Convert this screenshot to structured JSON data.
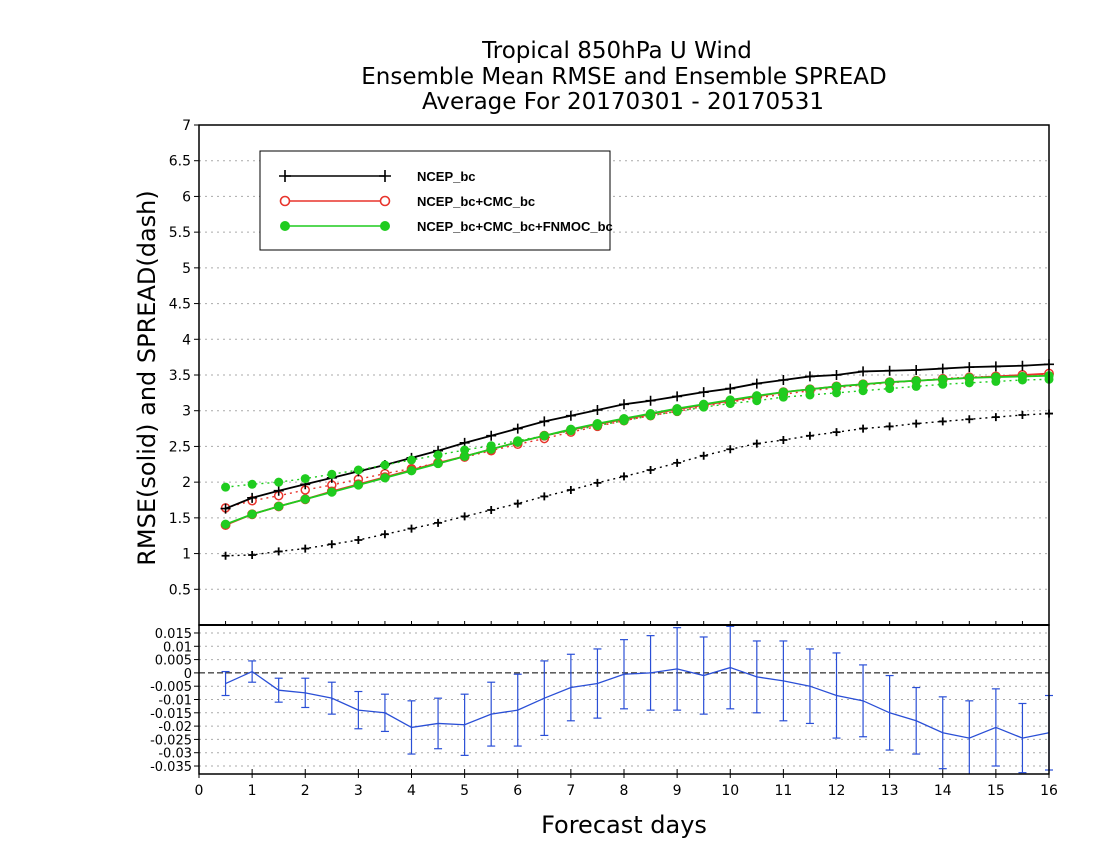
{
  "chart_data": [
    {
      "type": "line",
      "title": [
        "Tropical 850hPa U Wind",
        "Ensemble Mean RMSE and Ensemble SPREAD",
        "Average For 20170301 - 20170531"
      ],
      "ylabel": "RMSE(solid)  and  SPREAD(dash)",
      "xlim": [
        0,
        16
      ],
      "ylim": [
        0,
        7
      ],
      "yticks": [
        "0.5",
        "1",
        "1.5",
        "2",
        "2.5",
        "3",
        "3.5",
        "4",
        "4.5",
        "5",
        "5.5",
        "6",
        "6.5",
        "7"
      ],
      "grid": true,
      "legend_position": "top-left",
      "x": [
        0.5,
        1,
        1.5,
        2,
        2.5,
        3,
        3.5,
        4,
        4.5,
        5,
        5.5,
        6,
        6.5,
        7,
        7.5,
        8,
        8.5,
        9,
        9.5,
        10,
        10.5,
        11,
        11.5,
        12,
        12.5,
        13,
        13.5,
        14,
        14.5,
        15,
        15.5,
        16
      ],
      "series": [
        {
          "name": "NCEP_bc",
          "color": "#000000",
          "marker": "plus",
          "rmse": [
            1.63,
            1.78,
            1.88,
            1.97,
            2.06,
            2.15,
            2.24,
            2.34,
            2.44,
            2.55,
            2.65,
            2.75,
            2.85,
            2.93,
            3.01,
            3.09,
            3.14,
            3.2,
            3.26,
            3.31,
            3.38,
            3.43,
            3.48,
            3.5,
            3.55,
            3.56,
            3.57,
            3.59,
            3.61,
            3.62,
            3.63,
            3.65
          ],
          "spread": [
            0.97,
            0.98,
            1.03,
            1.07,
            1.13,
            1.19,
            1.27,
            1.35,
            1.43,
            1.52,
            1.61,
            1.7,
            1.8,
            1.89,
            1.99,
            2.08,
            2.17,
            2.27,
            2.37,
            2.46,
            2.54,
            2.59,
            2.65,
            2.7,
            2.75,
            2.78,
            2.82,
            2.85,
            2.88,
            2.91,
            2.94,
            2.96
          ]
        },
        {
          "name": "NCEP_bc+CMC_bc",
          "color": "#e8342c",
          "marker": "open-circle",
          "rmse": [
            1.4,
            1.55,
            1.66,
            1.76,
            1.87,
            1.97,
            2.07,
            2.17,
            2.27,
            2.36,
            2.46,
            2.56,
            2.65,
            2.73,
            2.81,
            2.88,
            2.95,
            3.02,
            3.08,
            3.14,
            3.2,
            3.26,
            3.3,
            3.34,
            3.37,
            3.4,
            3.42,
            3.44,
            3.46,
            3.48,
            3.5,
            3.52
          ],
          "spread": [
            1.64,
            1.74,
            1.81,
            1.89,
            1.96,
            2.04,
            2.12,
            2.19,
            2.27,
            2.35,
            2.44,
            2.53,
            2.61,
            2.7,
            2.78,
            2.86,
            2.93,
            2.99,
            3.06,
            3.12,
            3.18,
            3.23,
            3.28,
            3.32,
            3.36,
            3.39,
            3.42,
            3.45,
            3.47,
            3.48,
            3.5,
            3.51
          ]
        },
        {
          "name": "NCEP_bc+CMC_bc+FNMOC_bc",
          "color": "#1fcc1f",
          "marker": "filled-circle",
          "rmse": [
            1.41,
            1.55,
            1.66,
            1.76,
            1.86,
            1.96,
            2.06,
            2.16,
            2.26,
            2.36,
            2.46,
            2.56,
            2.65,
            2.74,
            2.82,
            2.89,
            2.96,
            3.03,
            3.09,
            3.15,
            3.21,
            3.26,
            3.3,
            3.34,
            3.37,
            3.4,
            3.42,
            3.44,
            3.46,
            3.47,
            3.48,
            3.49
          ],
          "spread": [
            1.93,
            1.97,
            2.0,
            2.05,
            2.11,
            2.17,
            2.24,
            2.31,
            2.38,
            2.45,
            2.51,
            2.58,
            2.65,
            2.72,
            2.79,
            2.86,
            2.93,
            2.99,
            3.05,
            3.1,
            3.14,
            3.19,
            3.22,
            3.25,
            3.28,
            3.31,
            3.34,
            3.37,
            3.39,
            3.41,
            3.43,
            3.44
          ]
        }
      ]
    },
    {
      "type": "line",
      "xlabel": "Forecast days",
      "xticks": [
        "0",
        "1",
        "2",
        "3",
        "4",
        "5",
        "6",
        "7",
        "8",
        "9",
        "10",
        "11",
        "12",
        "13",
        "14",
        "15",
        "16"
      ],
      "xlim": [
        0,
        16
      ],
      "ylim": [
        -0.038,
        0.018
      ],
      "yticks": [
        "0.015",
        "0.01",
        "0.005",
        "0",
        "-0.005",
        "-0.01",
        "-0.015",
        "-0.02",
        "-0.025",
        "-0.03",
        "-0.035"
      ],
      "grid": true,
      "series": [
        {
          "color": "#2a4fd6",
          "x": [
            0.5,
            1,
            1.5,
            2,
            2.5,
            3,
            3.5,
            4,
            4.5,
            5,
            5.5,
            6,
            6.5,
            7,
            7.5,
            8,
            8.5,
            9,
            9.5,
            10,
            10.5,
            11,
            11.5,
            12,
            12.5,
            13,
            13.5,
            14,
            14.5,
            15,
            15.5,
            16
          ],
          "values": [
            -0.004,
            0.0005,
            -0.0065,
            -0.0075,
            -0.0095,
            -0.014,
            -0.015,
            -0.0205,
            -0.019,
            -0.0195,
            -0.0155,
            -0.014,
            -0.0095,
            -0.0055,
            -0.004,
            -0.0005,
            0.0,
            0.0015,
            -0.001,
            0.002,
            -0.0015,
            -0.003,
            -0.005,
            -0.0085,
            -0.0105,
            -0.015,
            -0.018,
            -0.0225,
            -0.0245,
            -0.0205,
            -0.0245,
            -0.0225
          ],
          "error_bars": [
            0.0045,
            0.004,
            0.0045,
            0.0055,
            0.006,
            0.007,
            0.007,
            0.01,
            0.0095,
            0.0115,
            0.012,
            0.0135,
            0.014,
            0.0125,
            0.013,
            0.013,
            0.014,
            0.0155,
            0.0145,
            0.0155,
            0.0135,
            0.015,
            0.014,
            0.016,
            0.0135,
            0.014,
            0.0125,
            0.0135,
            0.014,
            0.0145,
            0.013,
            0.014
          ]
        }
      ]
    }
  ]
}
